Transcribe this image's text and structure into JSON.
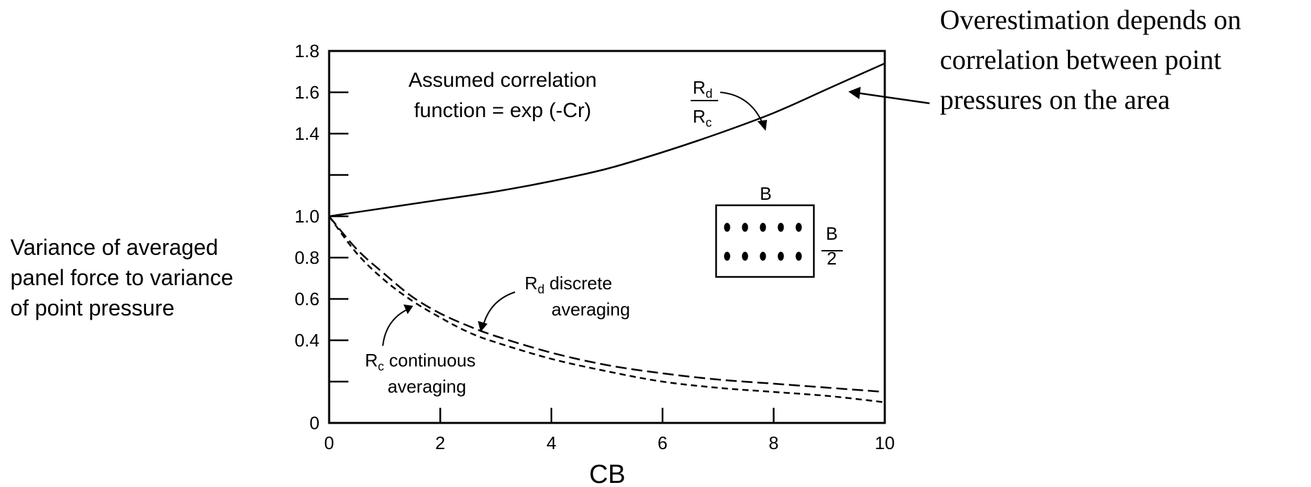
{
  "chart_data": {
    "type": "line",
    "xlabel": "CB",
    "ylabel_lines": [
      "Variance of averaged",
      "panel force to variance",
      "of point pressure"
    ],
    "xlim": [
      0,
      10
    ],
    "ylim": [
      0,
      1.8
    ],
    "x_ticks": [
      0,
      2,
      4,
      6,
      8,
      10
    ],
    "x_tick_labels": [
      "0",
      "2",
      "4",
      "6",
      "8",
      "10"
    ],
    "y_ticks": [
      0,
      0.2,
      0.4,
      0.6,
      0.8,
      1.0,
      1.2,
      1.4,
      1.6,
      1.8
    ],
    "y_tick_labels": [
      "0",
      "",
      "0.4",
      "0.6",
      "0.8",
      "1.0",
      "",
      "1.4",
      "1.6",
      "1.8"
    ],
    "grid": false,
    "series": [
      {
        "name": "Rd/Rc",
        "style": "solid",
        "x": [
          0,
          1,
          2,
          3,
          4,
          5,
          6,
          7,
          8,
          9,
          10
        ],
        "y": [
          1.0,
          1.04,
          1.08,
          1.12,
          1.17,
          1.23,
          1.31,
          1.4,
          1.5,
          1.62,
          1.74
        ]
      },
      {
        "name": "Rd discrete averaging",
        "style": "long-dash",
        "x": [
          0,
          0.5,
          1,
          1.5,
          2,
          2.5,
          3,
          4,
          5,
          6,
          7,
          8,
          9,
          10
        ],
        "y": [
          1.0,
          0.84,
          0.72,
          0.61,
          0.53,
          0.47,
          0.42,
          0.34,
          0.28,
          0.24,
          0.21,
          0.19,
          0.17,
          0.15
        ]
      },
      {
        "name": "Rc continuous averaging",
        "style": "short-dash",
        "x": [
          0,
          0.5,
          1,
          1.5,
          2,
          2.5,
          3,
          4,
          5,
          6,
          7,
          8,
          9,
          10
        ],
        "y": [
          1.0,
          0.82,
          0.69,
          0.59,
          0.51,
          0.44,
          0.39,
          0.31,
          0.25,
          0.2,
          0.17,
          0.15,
          0.13,
          0.1
        ]
      }
    ],
    "annotations": {
      "correlation_line1": "Assumed correlation",
      "correlation_line2": "function = exp (-Cr)",
      "ratio_num_R": "R",
      "ratio_num_sub": "d",
      "ratio_den_R": "R",
      "ratio_den_sub": "c",
      "discrete_R": "R",
      "discrete_sub": "d",
      "discrete_rest": " discrete",
      "discrete_line2": "averaging",
      "continuous_R": "R",
      "continuous_sub": "c",
      "continuous_rest": " continuous",
      "continuous_line2": "averaging",
      "panel_top_label": "B",
      "panel_side_num": "B",
      "panel_side_den": "2",
      "callout_lines": [
        "Overestimation depends on",
        "correlation between point",
        "pressures on the area"
      ]
    }
  }
}
